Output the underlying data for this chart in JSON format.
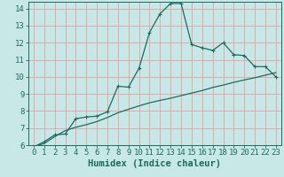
{
  "xlabel": "Humidex (Indice chaleur)",
  "bg_color": "#c8e8e8",
  "grid_color": "#e8a0a0",
  "line_color": "#1a6b5e",
  "xlim": [
    -0.5,
    23.5
  ],
  "ylim": [
    6,
    14.4
  ],
  "xticks": [
    0,
    1,
    2,
    3,
    4,
    5,
    6,
    7,
    8,
    9,
    10,
    11,
    12,
    13,
    14,
    15,
    16,
    17,
    18,
    19,
    20,
    21,
    22,
    23
  ],
  "yticks": [
    6,
    7,
    8,
    9,
    10,
    11,
    12,
    13,
    14
  ],
  "line1_x": [
    0,
    1,
    2,
    3,
    4,
    5,
    6,
    7,
    8,
    9,
    10,
    11,
    12,
    13,
    14,
    15,
    16,
    17,
    18,
    19,
    20,
    21,
    22,
    23
  ],
  "line1_y": [
    5.9,
    6.2,
    6.6,
    6.65,
    7.55,
    7.65,
    7.7,
    7.95,
    9.45,
    9.4,
    10.5,
    12.6,
    13.7,
    14.3,
    14.3,
    11.9,
    11.7,
    11.55,
    12.0,
    11.3,
    11.25,
    10.6,
    10.6,
    10.0
  ],
  "line2_x": [
    0,
    1,
    2,
    3,
    4,
    5,
    6,
    7,
    8,
    9,
    10,
    11,
    12,
    13,
    14,
    15,
    16,
    17,
    18,
    19,
    20,
    21,
    22,
    23
  ],
  "line2_y": [
    5.9,
    6.1,
    6.5,
    6.85,
    7.05,
    7.2,
    7.38,
    7.62,
    7.9,
    8.1,
    8.3,
    8.48,
    8.62,
    8.75,
    8.9,
    9.05,
    9.2,
    9.38,
    9.52,
    9.68,
    9.82,
    9.95,
    10.1,
    10.25
  ],
  "marker": "+",
  "markersize": 3,
  "linewidth": 0.9,
  "tick_fontsize": 6.5,
  "xlabel_fontsize": 7.5
}
